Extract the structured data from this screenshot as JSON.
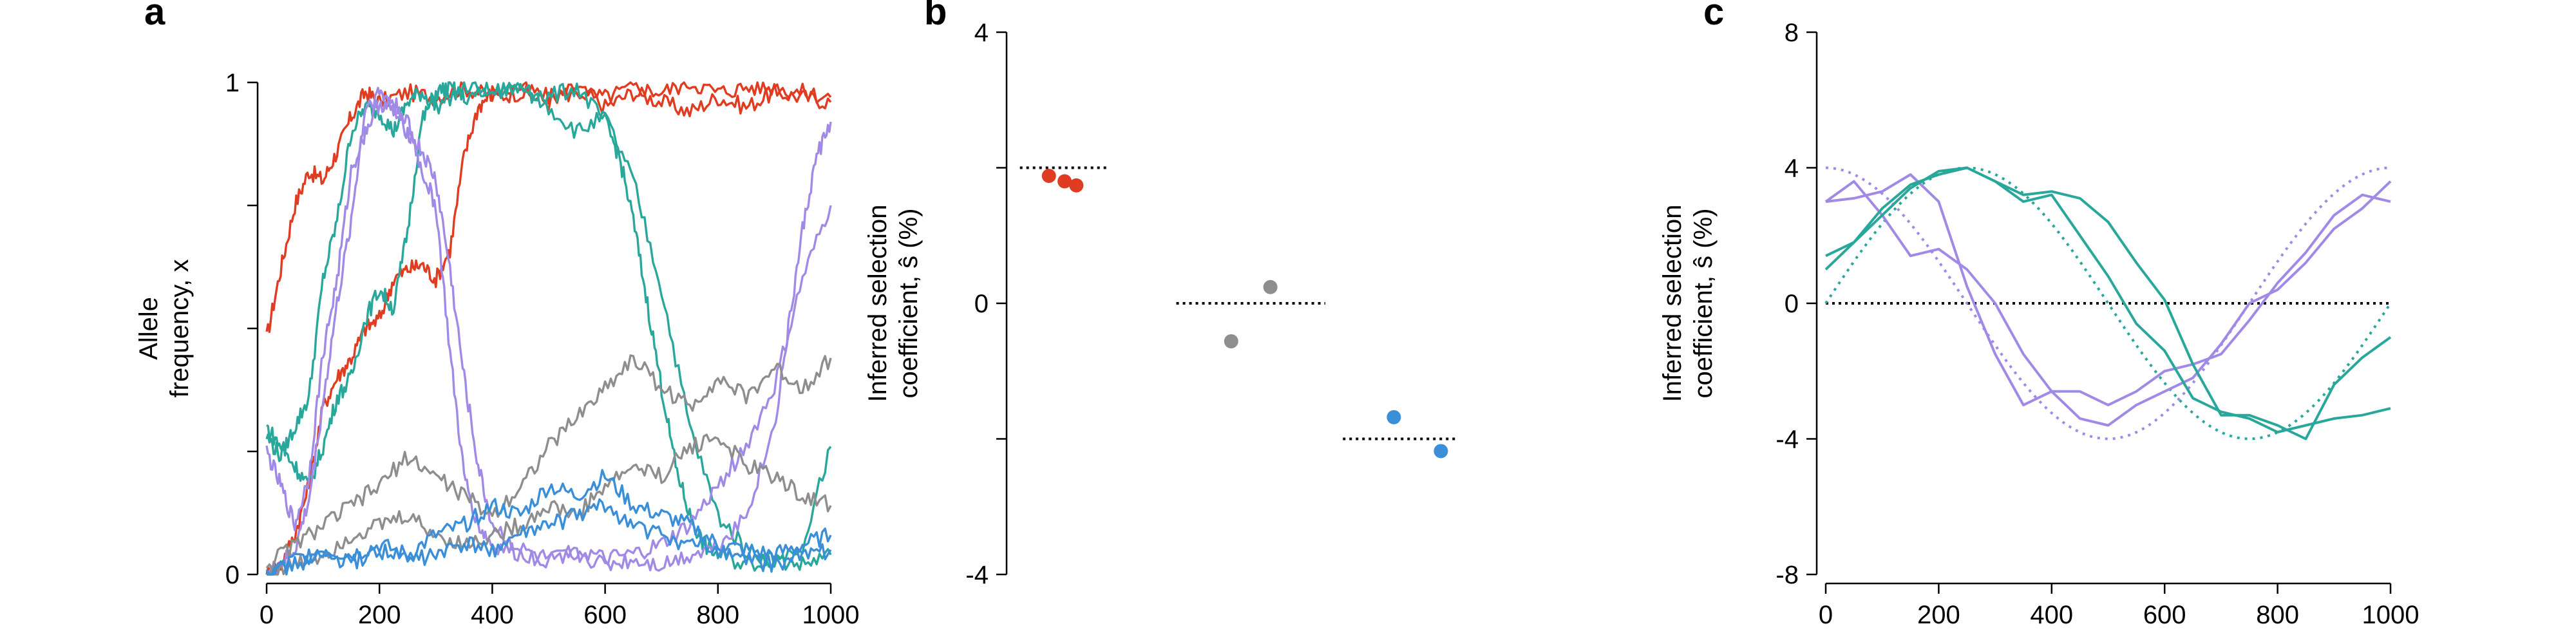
{
  "chart_data": [
    {
      "panel": "a",
      "type": "line",
      "ylabel_lines": [
        "Allele",
        "frequency, x"
      ],
      "xlim": [
        0,
        1000
      ],
      "ylim": [
        0,
        1
      ],
      "xticks": [
        0,
        200,
        400,
        600,
        800,
        1000
      ],
      "yticks": [
        0,
        1
      ],
      "yticks_labeled": [
        0,
        1
      ],
      "grid": false,
      "series": [
        {
          "color": "#e03c21",
          "x": [
            0,
            25,
            50,
            75,
            100,
            125,
            150,
            175,
            200,
            250,
            300,
            350,
            400,
            450,
            500,
            550,
            600,
            650,
            700,
            750,
            800,
            850,
            900,
            950,
            1000
          ],
          "y": [
            0.48,
            0.62,
            0.75,
            0.82,
            0.8,
            0.86,
            0.93,
            0.98,
            0.96,
            0.98,
            0.97,
            0.99,
            0.97,
            0.98,
            0.96,
            0.99,
            0.95,
            0.98,
            0.96,
            0.94,
            0.97,
            0.95,
            0.98,
            0.97,
            0.96
          ]
        },
        {
          "color": "#e03c21",
          "x": [
            0,
            25,
            50,
            75,
            100,
            125,
            150,
            175,
            200,
            225,
            250,
            275,
            300,
            325,
            350,
            375,
            400,
            450,
            500,
            550,
            600,
            650,
            700,
            750,
            800,
            850,
            900,
            950,
            1000
          ],
          "y": [
            0.0,
            0.02,
            0.08,
            0.18,
            0.34,
            0.4,
            0.44,
            0.5,
            0.52,
            0.6,
            0.62,
            0.63,
            0.6,
            0.66,
            0.85,
            0.95,
            0.98,
            0.99,
            0.97,
            0.98,
            0.97,
            0.99,
            0.98,
            1.0,
            0.98,
            0.99,
            0.99,
            0.98,
            0.97
          ]
        },
        {
          "color": "#2aa79b",
          "x": [
            0,
            25,
            50,
            75,
            100,
            125,
            150,
            175,
            200,
            225,
            250,
            275,
            300,
            350,
            400,
            450,
            500,
            550,
            600,
            625,
            650,
            675,
            700,
            725,
            750,
            775,
            800,
            850,
            900,
            950,
            1000
          ],
          "y": [
            0.28,
            0.24,
            0.3,
            0.36,
            0.6,
            0.72,
            0.9,
            0.95,
            0.94,
            0.9,
            0.96,
            0.98,
            0.95,
            0.99,
            0.98,
            0.99,
            0.97,
            0.99,
            0.92,
            0.85,
            0.72,
            0.55,
            0.38,
            0.22,
            0.12,
            0.06,
            0.04,
            0.02,
            0.03,
            0.06,
            0.26
          ]
        },
        {
          "color": "#2aa79b",
          "x": [
            0,
            25,
            50,
            75,
            100,
            125,
            150,
            175,
            200,
            225,
            250,
            275,
            300,
            325,
            350,
            400,
            450,
            500,
            550,
            600,
            650,
            700,
            750,
            800,
            850,
            900,
            950,
            1000
          ],
          "y": [
            0.3,
            0.26,
            0.22,
            0.18,
            0.26,
            0.36,
            0.4,
            0.52,
            0.58,
            0.54,
            0.7,
            0.92,
            0.98,
            0.99,
            0.97,
            0.98,
            0.99,
            0.95,
            0.9,
            0.93,
            0.8,
            0.58,
            0.3,
            0.12,
            0.05,
            0.03,
            0.02,
            0.04
          ]
        },
        {
          "color": "#a18ae6",
          "x": [
            0,
            25,
            50,
            75,
            100,
            125,
            150,
            175,
            200,
            225,
            250,
            275,
            300,
            325,
            350,
            375,
            400,
            450,
            500,
            550,
            600,
            650,
            700,
            750,
            800,
            850,
            900,
            925,
            950,
            975,
            1000
          ],
          "y": [
            0.25,
            0.18,
            0.1,
            0.2,
            0.45,
            0.6,
            0.82,
            0.9,
            0.96,
            0.94,
            0.9,
            0.86,
            0.8,
            0.62,
            0.4,
            0.22,
            0.1,
            0.05,
            0.03,
            0.04,
            0.02,
            0.03,
            0.02,
            0.04,
            0.06,
            0.12,
            0.3,
            0.5,
            0.7,
            0.85,
            0.92
          ]
        },
        {
          "color": "#a18ae6",
          "x": [
            0,
            25,
            50,
            75,
            100,
            125,
            150,
            175,
            200,
            225,
            250,
            275,
            300,
            325,
            350,
            375,
            400,
            450,
            500,
            550,
            600,
            650,
            700,
            750,
            800,
            850,
            900,
            950,
            1000
          ],
          "y": [
            0.0,
            0.02,
            0.05,
            0.15,
            0.35,
            0.55,
            0.72,
            0.95,
            0.98,
            0.96,
            0.92,
            0.82,
            0.75,
            0.45,
            0.2,
            0.1,
            0.06,
            0.04,
            0.03,
            0.05,
            0.03,
            0.04,
            0.06,
            0.1,
            0.18,
            0.26,
            0.38,
            0.6,
            0.75
          ]
        },
        {
          "color": "#8e8e8e",
          "x": [
            0,
            50,
            100,
            150,
            200,
            250,
            300,
            350,
            400,
            450,
            500,
            550,
            600,
            650,
            700,
            750,
            800,
            850,
            900,
            950,
            1000
          ],
          "y": [
            0.02,
            0.06,
            0.1,
            0.14,
            0.18,
            0.24,
            0.2,
            0.16,
            0.12,
            0.18,
            0.26,
            0.32,
            0.38,
            0.44,
            0.38,
            0.34,
            0.4,
            0.36,
            0.42,
            0.38,
            0.44
          ]
        },
        {
          "color": "#8e8e8e",
          "x": [
            0,
            50,
            100,
            150,
            200,
            250,
            300,
            350,
            400,
            450,
            500,
            550,
            600,
            650,
            700,
            750,
            800,
            850,
            900,
            950,
            1000
          ],
          "y": [
            0.0,
            0.02,
            0.04,
            0.08,
            0.1,
            0.12,
            0.08,
            0.06,
            0.08,
            0.1,
            0.14,
            0.12,
            0.18,
            0.22,
            0.2,
            0.26,
            0.28,
            0.22,
            0.2,
            0.16,
            0.14
          ]
        },
        {
          "color": "#3a8fd8",
          "x": [
            0,
            50,
            100,
            150,
            200,
            250,
            300,
            350,
            400,
            450,
            500,
            550,
            600,
            650,
            700,
            750,
            800,
            850,
            900,
            950,
            1000
          ],
          "y": [
            0.0,
            0.03,
            0.05,
            0.04,
            0.06,
            0.04,
            0.08,
            0.1,
            0.14,
            0.12,
            0.18,
            0.16,
            0.2,
            0.14,
            0.12,
            0.1,
            0.06,
            0.05,
            0.04,
            0.06,
            0.08
          ]
        },
        {
          "color": "#3a8fd8",
          "x": [
            0,
            50,
            100,
            150,
            200,
            250,
            300,
            350,
            400,
            450,
            500,
            550,
            600,
            650,
            700,
            750,
            800,
            850,
            900,
            950,
            1000
          ],
          "y": [
            0.0,
            0.02,
            0.04,
            0.02,
            0.05,
            0.03,
            0.04,
            0.06,
            0.05,
            0.08,
            0.1,
            0.12,
            0.14,
            0.1,
            0.08,
            0.06,
            0.05,
            0.03,
            0.02,
            0.04,
            0.05
          ]
        }
      ]
    },
    {
      "panel": "b",
      "type": "scatter",
      "ylabel_lines": [
        "Inferred selection",
        "coefficient, ŝ (%)"
      ],
      "ylim": [
        -4,
        4
      ],
      "yticks": [
        -4,
        0,
        4
      ],
      "yticks_labeled": [
        -4,
        0,
        4
      ],
      "grid": false,
      "groups": [
        {
          "color": "#e03c21",
          "true_value": 2.0,
          "points": [
            {
              "offset": -0.08,
              "y": 1.88
            },
            {
              "offset": 0.0,
              "y": 1.8
            },
            {
              "offset": 0.06,
              "y": 1.74
            }
          ]
        },
        {
          "color": "#8e8e8e",
          "true_value": 0.0,
          "points": [
            {
              "offset": 0.1,
              "y": 0.24
            },
            {
              "offset": -0.1,
              "y": -0.56
            }
          ]
        },
        {
          "color": "#3a8fd8",
          "true_value": -2.0,
          "points": [
            {
              "offset": -0.12,
              "y": -1.68
            },
            {
              "offset": 0.12,
              "y": -2.18
            }
          ]
        }
      ]
    },
    {
      "panel": "c",
      "type": "line",
      "ylabel_lines": [
        "Inferred selection",
        "coefficient, ŝ (%)"
      ],
      "xlim": [
        0,
        1000
      ],
      "ylim": [
        -8,
        8
      ],
      "xticks": [
        0,
        200,
        400,
        600,
        800,
        1000
      ],
      "yticks": [
        -8,
        -4,
        0,
        4,
        8
      ],
      "yticks_labeled": [
        -8,
        -4,
        0,
        4,
        8
      ],
      "grid": false,
      "true_series": [
        {
          "color": "#a18ae6",
          "amplitude": 4,
          "period": 1000,
          "phase": 0,
          "kind": "cos"
        },
        {
          "color": "#2aa79b",
          "amplitude": 4,
          "period": 1000,
          "phase": 0,
          "kind": "sin"
        }
      ],
      "series": [
        {
          "color": "#a18ae6",
          "x": [
            0,
            50,
            100,
            150,
            200,
            250,
            300,
            350,
            400,
            450,
            500,
            550,
            600,
            650,
            700,
            750,
            800,
            850,
            900,
            950,
            1000
          ],
          "y": [
            3.0,
            3.1,
            3.3,
            3.8,
            3.0,
            0.5,
            -1.5,
            -3.0,
            -2.6,
            -2.6,
            -3.0,
            -2.6,
            -2.0,
            -1.8,
            -1.5,
            -0.5,
            0.6,
            1.5,
            2.6,
            3.2,
            3.0
          ]
        },
        {
          "color": "#a18ae6",
          "x": [
            0,
            50,
            100,
            150,
            200,
            250,
            300,
            350,
            400,
            450,
            500,
            550,
            600,
            650,
            700,
            750,
            800,
            850,
            900,
            950,
            1000
          ],
          "y": [
            3.0,
            3.6,
            2.6,
            1.4,
            1.6,
            1.0,
            0.0,
            -1.5,
            -2.6,
            -3.4,
            -3.6,
            -3.0,
            -2.6,
            -2.2,
            -1.2,
            0.0,
            0.4,
            1.2,
            2.2,
            2.8,
            3.6
          ]
        },
        {
          "color": "#2aa79b",
          "x": [
            0,
            50,
            100,
            150,
            200,
            250,
            300,
            350,
            400,
            450,
            500,
            550,
            600,
            650,
            700,
            750,
            800,
            850,
            900,
            950,
            1000
          ],
          "y": [
            1.0,
            1.8,
            2.8,
            3.5,
            3.8,
            4.0,
            3.6,
            3.0,
            3.2,
            2.0,
            0.8,
            -0.6,
            -1.4,
            -2.8,
            -3.2,
            -3.4,
            -3.8,
            -3.6,
            -3.4,
            -3.3,
            -3.1
          ]
        },
        {
          "color": "#2aa79b",
          "x": [
            0,
            50,
            100,
            150,
            200,
            250,
            300,
            350,
            400,
            450,
            500,
            550,
            600,
            650,
            700,
            750,
            800,
            850,
            900,
            950,
            1000
          ],
          "y": [
            1.4,
            1.8,
            2.6,
            3.4,
            3.9,
            4.0,
            3.6,
            3.2,
            3.3,
            3.1,
            2.4,
            1.2,
            0.1,
            -1.8,
            -3.3,
            -3.3,
            -3.6,
            -4.0,
            -2.4,
            -1.6,
            -1.0
          ]
        }
      ]
    }
  ]
}
